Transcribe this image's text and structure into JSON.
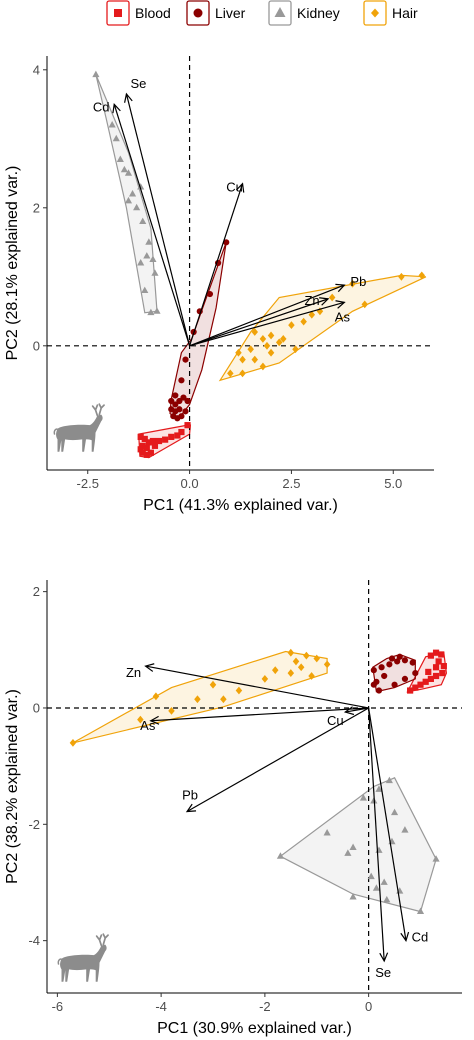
{
  "colors": {
    "Blood": "#e41a1c",
    "Liver": "#8b0000",
    "Kidney": "#999999",
    "Hair": "#f0a30a"
  },
  "legend": [
    {
      "name": "Blood",
      "shape": "square",
      "fill": "#f6b3b3",
      "stroke": "#e41a1c"
    },
    {
      "name": "Liver",
      "shape": "circle",
      "fill": "#e8b8b8",
      "stroke": "#8b0000"
    },
    {
      "name": "Kidney",
      "shape": "triangle",
      "fill": "#e6e6e6",
      "stroke": "#999999"
    },
    {
      "name": "Hair",
      "shape": "diamond",
      "fill": "#fbe3b0",
      "stroke": "#f0a30a"
    }
  ],
  "icon": "deer-icon",
  "chart_data": [
    {
      "type": "scatter",
      "subtype": "pca-biplot",
      "xlabel": "PC1 (41.3% explained var.)",
      "ylabel": "PC2 (28.1% explained var.)",
      "xlim": [
        -3.5,
        6.0
      ],
      "ylim": [
        -1.8,
        4.2
      ],
      "xticks": [
        -2.5,
        0.0,
        2.5,
        5.0
      ],
      "xtick_labels": [
        "-2.5",
        "0.0",
        "2.5",
        "5.0"
      ],
      "yticks": [
        0,
        2,
        4
      ],
      "ytick_labels": [
        "0",
        "2",
        "4"
      ],
      "reference_lines": {
        "x": 0,
        "y": 0
      },
      "groups": [
        {
          "name": "Blood",
          "points": [
            [
              -1.2,
              -1.32
            ],
            [
              -1.1,
              -1.35
            ],
            [
              -1.0,
              -1.4
            ],
            [
              -0.9,
              -1.38
            ],
            [
              -0.75,
              -1.38
            ],
            [
              -0.6,
              -1.36
            ],
            [
              -0.45,
              -1.32
            ],
            [
              -0.3,
              -1.3
            ],
            [
              -1.15,
              -1.45
            ],
            [
              -1.05,
              -1.48
            ],
            [
              -0.85,
              -1.45
            ],
            [
              -1.15,
              -1.55
            ],
            [
              -1.05,
              -1.58
            ],
            [
              -0.95,
              -1.55
            ],
            [
              -1.2,
              -1.5
            ],
            [
              -0.2,
              -1.25
            ],
            [
              -0.05,
              -1.15
            ]
          ],
          "hull": [
            [
              -1.25,
              -1.28
            ],
            [
              -0.05,
              -1.15
            ],
            [
              0.02,
              -1.15
            ],
            [
              0.0,
              -1.28
            ],
            [
              -1.0,
              -1.62
            ],
            [
              -1.22,
              -1.6
            ]
          ]
        },
        {
          "name": "Liver",
          "points": [
            [
              -0.45,
              -0.8
            ],
            [
              -0.35,
              -0.72
            ],
            [
              -0.25,
              -0.8
            ],
            [
              -0.15,
              -0.75
            ],
            [
              -0.05,
              -0.8
            ],
            [
              -0.45,
              -0.92
            ],
            [
              -0.35,
              -0.95
            ],
            [
              -0.25,
              -0.92
            ],
            [
              -0.1,
              -0.95
            ],
            [
              -0.4,
              -1.02
            ],
            [
              -0.3,
              -1.05
            ],
            [
              -0.2,
              -1.02
            ],
            [
              -0.35,
              -0.85
            ],
            [
              -0.2,
              -0.5
            ],
            [
              -0.1,
              -0.2
            ],
            [
              0.1,
              0.2
            ],
            [
              0.25,
              0.5
            ],
            [
              0.5,
              0.75
            ],
            [
              0.7,
              1.2
            ],
            [
              0.9,
              1.5
            ]
          ],
          "hull": [
            [
              -0.45,
              -0.78
            ],
            [
              -0.2,
              -0.1
            ],
            [
              0.05,
              0.1
            ],
            [
              0.9,
              1.5
            ],
            [
              0.65,
              0.55
            ],
            [
              0.3,
              -0.35
            ],
            [
              0.0,
              -0.85
            ],
            [
              -0.3,
              -1.08
            ],
            [
              -0.48,
              -0.98
            ]
          ]
        },
        {
          "name": "Kidney",
          "points": [
            [
              -2.3,
              3.93
            ],
            [
              -1.9,
              3.2
            ],
            [
              -1.8,
              3.0
            ],
            [
              -1.7,
              2.7
            ],
            [
              -1.5,
              2.5
            ],
            [
              -1.4,
              2.2
            ],
            [
              -1.3,
              2.0
            ],
            [
              -1.15,
              1.8
            ],
            [
              -1.0,
              1.5
            ],
            [
              -1.05,
              1.3
            ],
            [
              -1.2,
              1.2
            ],
            [
              -0.9,
              1.25
            ],
            [
              -0.85,
              1.05
            ],
            [
              -1.1,
              0.8
            ],
            [
              -0.8,
              0.5
            ],
            [
              -0.95,
              0.48
            ],
            [
              -1.5,
              2.1
            ],
            [
              -1.2,
              2.3
            ],
            [
              -1.6,
              2.55
            ]
          ],
          "hull": [
            [
              -2.3,
              3.93
            ],
            [
              -1.5,
              2.8
            ],
            [
              -0.95,
              1.7
            ],
            [
              -0.8,
              0.5
            ],
            [
              -1.1,
              0.48
            ],
            [
              -1.55,
              2.0
            ],
            [
              -2.05,
              3.3
            ]
          ]
        },
        {
          "name": "Hair",
          "points": [
            [
              1.0,
              -0.4
            ],
            [
              1.3,
              -0.4
            ],
            [
              1.6,
              -0.2
            ],
            [
              1.8,
              -0.3
            ],
            [
              2.0,
              -0.1
            ],
            [
              2.3,
              0.1
            ],
            [
              2.8,
              0.35
            ],
            [
              3.2,
              0.5
            ],
            [
              3.5,
              0.7
            ],
            [
              4.0,
              0.9
            ],
            [
              4.3,
              0.6
            ],
            [
              5.2,
              1.0
            ],
            [
              5.7,
              1.02
            ],
            [
              1.3,
              -0.2
            ],
            [
              1.5,
              -0.05
            ],
            [
              1.6,
              0.2
            ],
            [
              2.5,
              0.3
            ],
            [
              1.8,
              0.1
            ],
            [
              2.0,
              0.15
            ],
            [
              3.0,
              0.45
            ],
            [
              1.9,
              0.0
            ],
            [
              2.2,
              0.05
            ],
            [
              1.2,
              -0.1
            ],
            [
              2.6,
              -0.05
            ]
          ],
          "hull": [
            [
              0.75,
              -0.5
            ],
            [
              2.2,
              -0.25
            ],
            [
              4.0,
              0.5
            ],
            [
              5.8,
              1.0
            ],
            [
              5.2,
              1.02
            ],
            [
              2.2,
              0.7
            ],
            [
              1.5,
              0.2
            ]
          ]
        }
      ],
      "vectors": [
        {
          "label": "Se",
          "x": -1.55,
          "y": 3.65
        },
        {
          "label": "Cd",
          "x": -1.85,
          "y": 3.5
        },
        {
          "label": "Cu",
          "x": 1.3,
          "y": 2.35
        },
        {
          "label": "Pb",
          "x": 3.8,
          "y": 0.88
        },
        {
          "label": "Zn",
          "x": 3.4,
          "y": 0.68
        },
        {
          "label": "As",
          "x": 3.8,
          "y": 0.63
        }
      ]
    },
    {
      "type": "scatter",
      "subtype": "pca-biplot",
      "xlabel": "PC1 (30.9% explained var.)",
      "ylabel": "PC2 (38.2% explained var.)",
      "xlim": [
        -6.2,
        1.8
      ],
      "ylim": [
        -4.9,
        2.2
      ],
      "xticks": [
        -6,
        -4,
        -2,
        0
      ],
      "xtick_labels": [
        "-6",
        "-4",
        "-2",
        "0"
      ],
      "yticks": [
        -4,
        -2,
        0,
        2
      ],
      "ytick_labels": [
        "-4",
        "-2",
        "0",
        "2"
      ],
      "reference_lines": {
        "x": 0,
        "y": 0
      },
      "groups": [
        {
          "name": "Blood",
          "points": [
            [
              1.2,
              0.9
            ],
            [
              1.3,
              0.95
            ],
            [
              1.4,
              0.92
            ],
            [
              1.35,
              0.8
            ],
            [
              1.45,
              0.72
            ],
            [
              1.42,
              0.6
            ],
            [
              1.3,
              0.55
            ],
            [
              1.2,
              0.5
            ],
            [
              1.1,
              0.45
            ],
            [
              1.0,
              0.4
            ],
            [
              0.9,
              0.35
            ],
            [
              0.8,
              0.3
            ],
            [
              1.15,
              0.62
            ],
            [
              1.3,
              0.7
            ]
          ],
          "hull": [
            [
              0.75,
              0.28
            ],
            [
              1.1,
              0.88
            ],
            [
              1.45,
              0.95
            ],
            [
              1.5,
              0.6
            ],
            [
              1.4,
              0.4
            ],
            [
              1.0,
              0.32
            ]
          ]
        },
        {
          "name": "Liver",
          "points": [
            [
              0.1,
              0.65
            ],
            [
              0.25,
              0.7
            ],
            [
              0.4,
              0.75
            ],
            [
              0.55,
              0.8
            ],
            [
              0.7,
              0.82
            ],
            [
              0.85,
              0.78
            ],
            [
              0.6,
              0.88
            ],
            [
              0.45,
              0.85
            ],
            [
              0.3,
              0.55
            ],
            [
              0.15,
              0.45
            ],
            [
              0.5,
              0.4
            ],
            [
              0.7,
              0.5
            ],
            [
              0.9,
              0.6
            ],
            [
              0.1,
              0.4
            ],
            [
              0.2,
              0.3
            ]
          ],
          "hull": [
            [
              0.08,
              0.7
            ],
            [
              0.35,
              0.85
            ],
            [
              0.6,
              0.92
            ],
            [
              0.9,
              0.82
            ],
            [
              0.9,
              0.5
            ],
            [
              0.5,
              0.35
            ],
            [
              0.15,
              0.28
            ]
          ]
        },
        {
          "name": "Kidney",
          "points": [
            [
              0.2,
              -1.4
            ],
            [
              0.4,
              -1.25
            ],
            [
              0.1,
              -1.6
            ],
            [
              -0.1,
              -1.55
            ],
            [
              0.5,
              -1.8
            ],
            [
              0.7,
              -2.1
            ],
            [
              0.45,
              -2.3
            ],
            [
              0.2,
              -2.45
            ],
            [
              -0.3,
              -2.4
            ],
            [
              -0.4,
              -2.5
            ],
            [
              -0.8,
              -2.15
            ],
            [
              0.05,
              -2.9
            ],
            [
              0.15,
              -3.1
            ],
            [
              0.35,
              -3.3
            ],
            [
              0.6,
              -3.15
            ],
            [
              -0.3,
              -3.25
            ],
            [
              -1.7,
              -2.55
            ],
            [
              1.3,
              -2.6
            ],
            [
              1.0,
              -3.5
            ],
            [
              0.3,
              -3.0
            ]
          ],
          "hull": [
            [
              -1.7,
              -2.55
            ],
            [
              -0.3,
              -3.2
            ],
            [
              1.0,
              -3.5
            ],
            [
              1.3,
              -2.6
            ],
            [
              0.5,
              -1.2
            ],
            [
              0.1,
              -1.35
            ]
          ]
        },
        {
          "name": "Hair",
          "points": [
            [
              -1.5,
              0.95
            ],
            [
              -1.2,
              0.9
            ],
            [
              -1.0,
              0.85
            ],
            [
              -0.8,
              0.75
            ],
            [
              -1.4,
              0.8
            ],
            [
              -1.3,
              0.7
            ],
            [
              -1.5,
              0.6
            ],
            [
              -2.0,
              0.5
            ],
            [
              -2.5,
              0.3
            ],
            [
              -3.3,
              0.15
            ],
            [
              -3.8,
              -0.05
            ],
            [
              -4.4,
              -0.2
            ],
            [
              -5.7,
              -0.6
            ],
            [
              -1.1,
              0.55
            ],
            [
              -2.8,
              0.15
            ],
            [
              -3.0,
              0.4
            ],
            [
              -4.1,
              0.2
            ],
            [
              -1.8,
              0.65
            ]
          ],
          "hull": [
            [
              -5.7,
              -0.6
            ],
            [
              -3.8,
              0.35
            ],
            [
              -1.6,
              0.97
            ],
            [
              -0.8,
              0.85
            ],
            [
              -0.8,
              0.6
            ],
            [
              -2.8,
              0.02
            ]
          ]
        }
      ],
      "vectors": [
        {
          "label": "Zn",
          "x": -4.3,
          "y": 0.72
        },
        {
          "label": "As",
          "x": -4.2,
          "y": -0.22
        },
        {
          "label": "Cu",
          "x": -0.45,
          "y": -0.07
        },
        {
          "label": "Pb",
          "x": -3.5,
          "y": -1.78
        },
        {
          "label": "Cd",
          "x": 0.72,
          "y": -4.0
        },
        {
          "label": "Se",
          "x": 0.3,
          "y": -4.35
        }
      ]
    }
  ]
}
